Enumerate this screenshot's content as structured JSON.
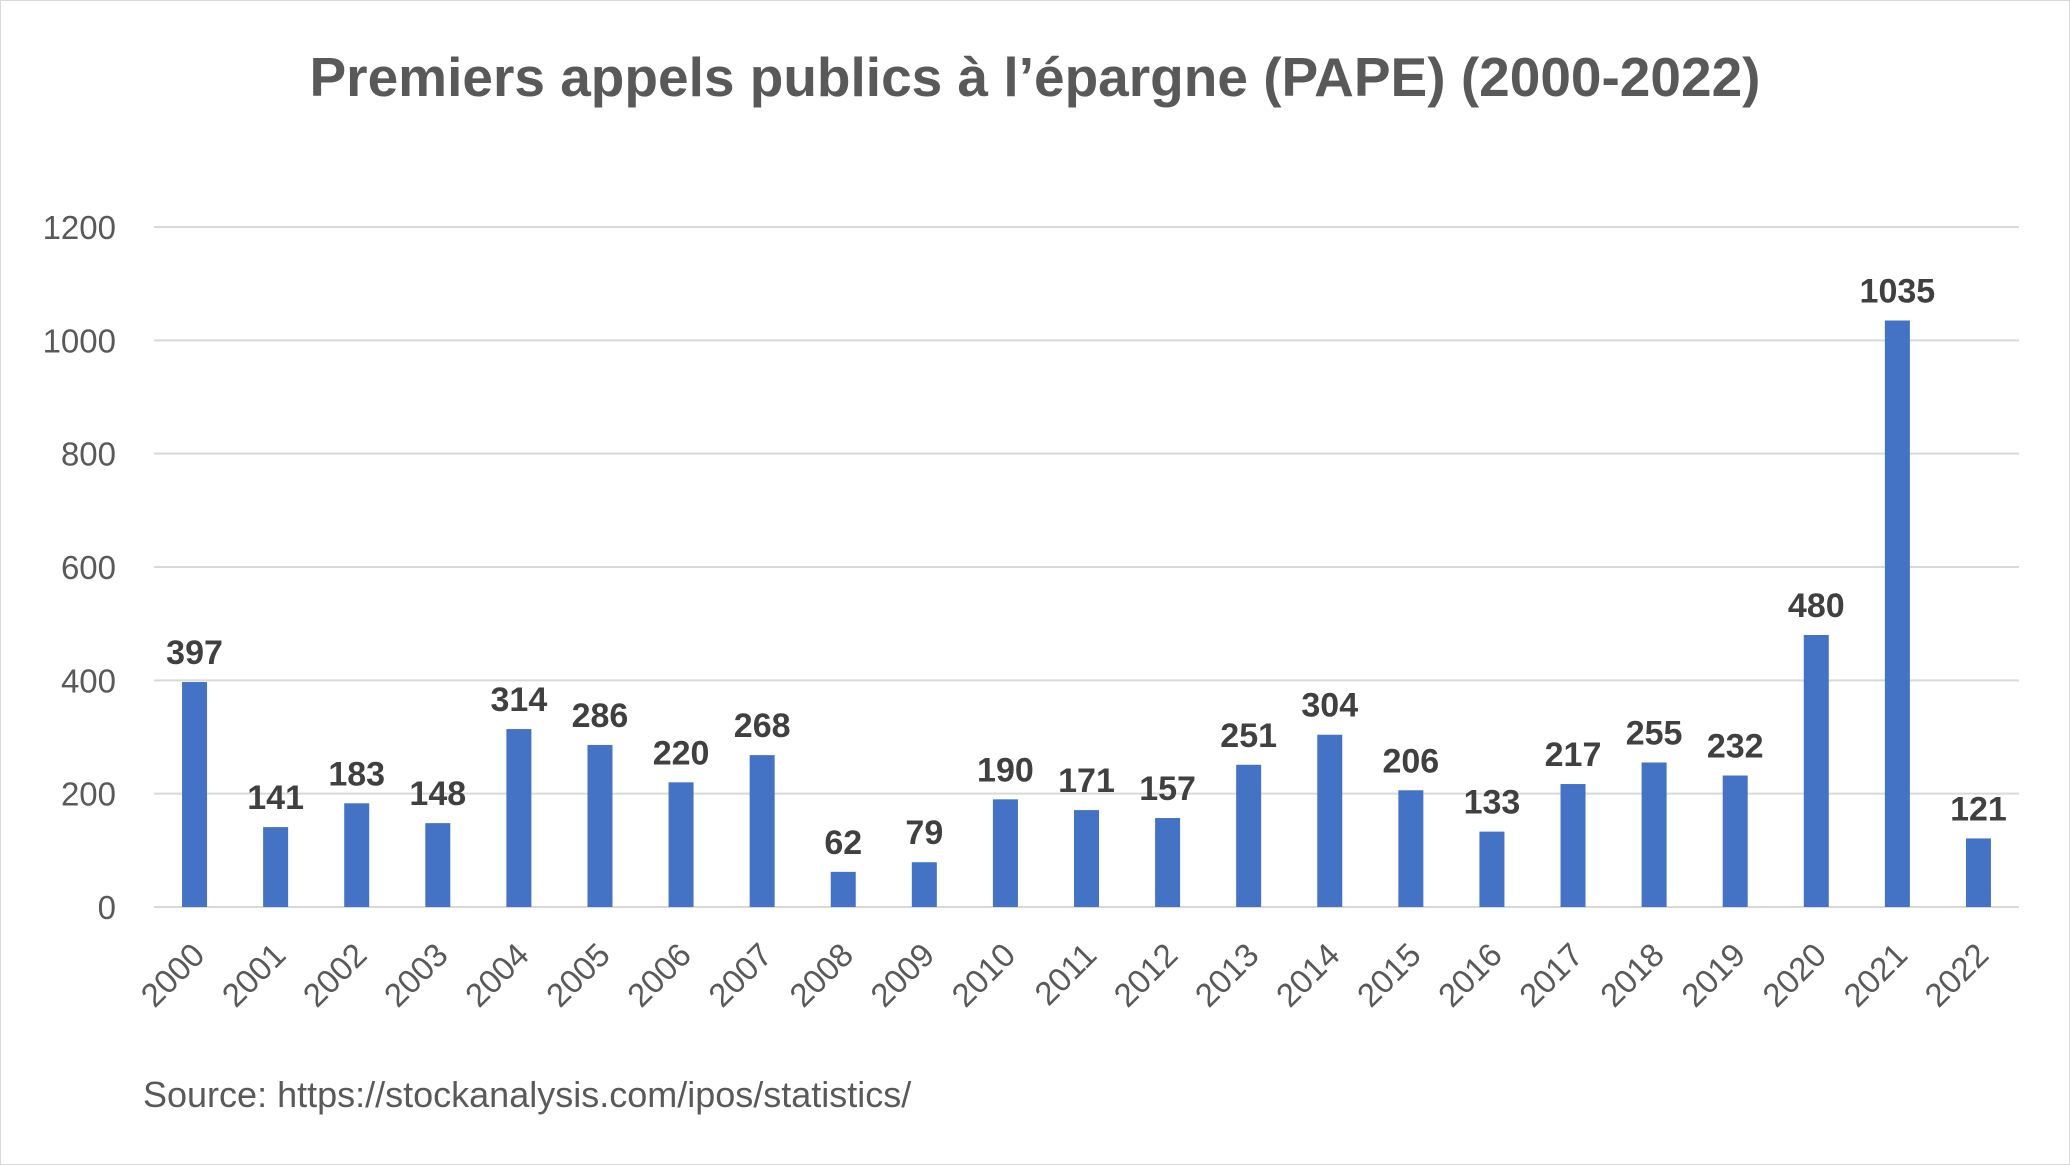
{
  "chart_data": {
    "type": "bar",
    "title": "Premiers appels publics à l’épargne (PAPE) (2000-2022)",
    "source": "Source: https://stockanalysis.com/ipos/statistics/",
    "xlabel": "",
    "ylabel": "",
    "categories": [
      "2000",
      "2001",
      "2002",
      "2003",
      "2004",
      "2005",
      "2006",
      "2007",
      "2008",
      "2009",
      "2010",
      "2011",
      "2012",
      "2013",
      "2014",
      "2015",
      "2016",
      "2017",
      "2018",
      "2019",
      "2020",
      "2021",
      "2022"
    ],
    "values": [
      397,
      141,
      183,
      148,
      314,
      286,
      220,
      268,
      62,
      79,
      190,
      171,
      157,
      251,
      304,
      206,
      133,
      217,
      255,
      232,
      480,
      1035,
      121
    ],
    "ylim": [
      0,
      1200
    ],
    "yticks": [
      0,
      200,
      400,
      600,
      800,
      1000,
      1200
    ],
    "grid": true,
    "legend": "none",
    "data_labels": true,
    "bar_color": "#4472c4",
    "grid_color": "#d9d9d9"
  }
}
